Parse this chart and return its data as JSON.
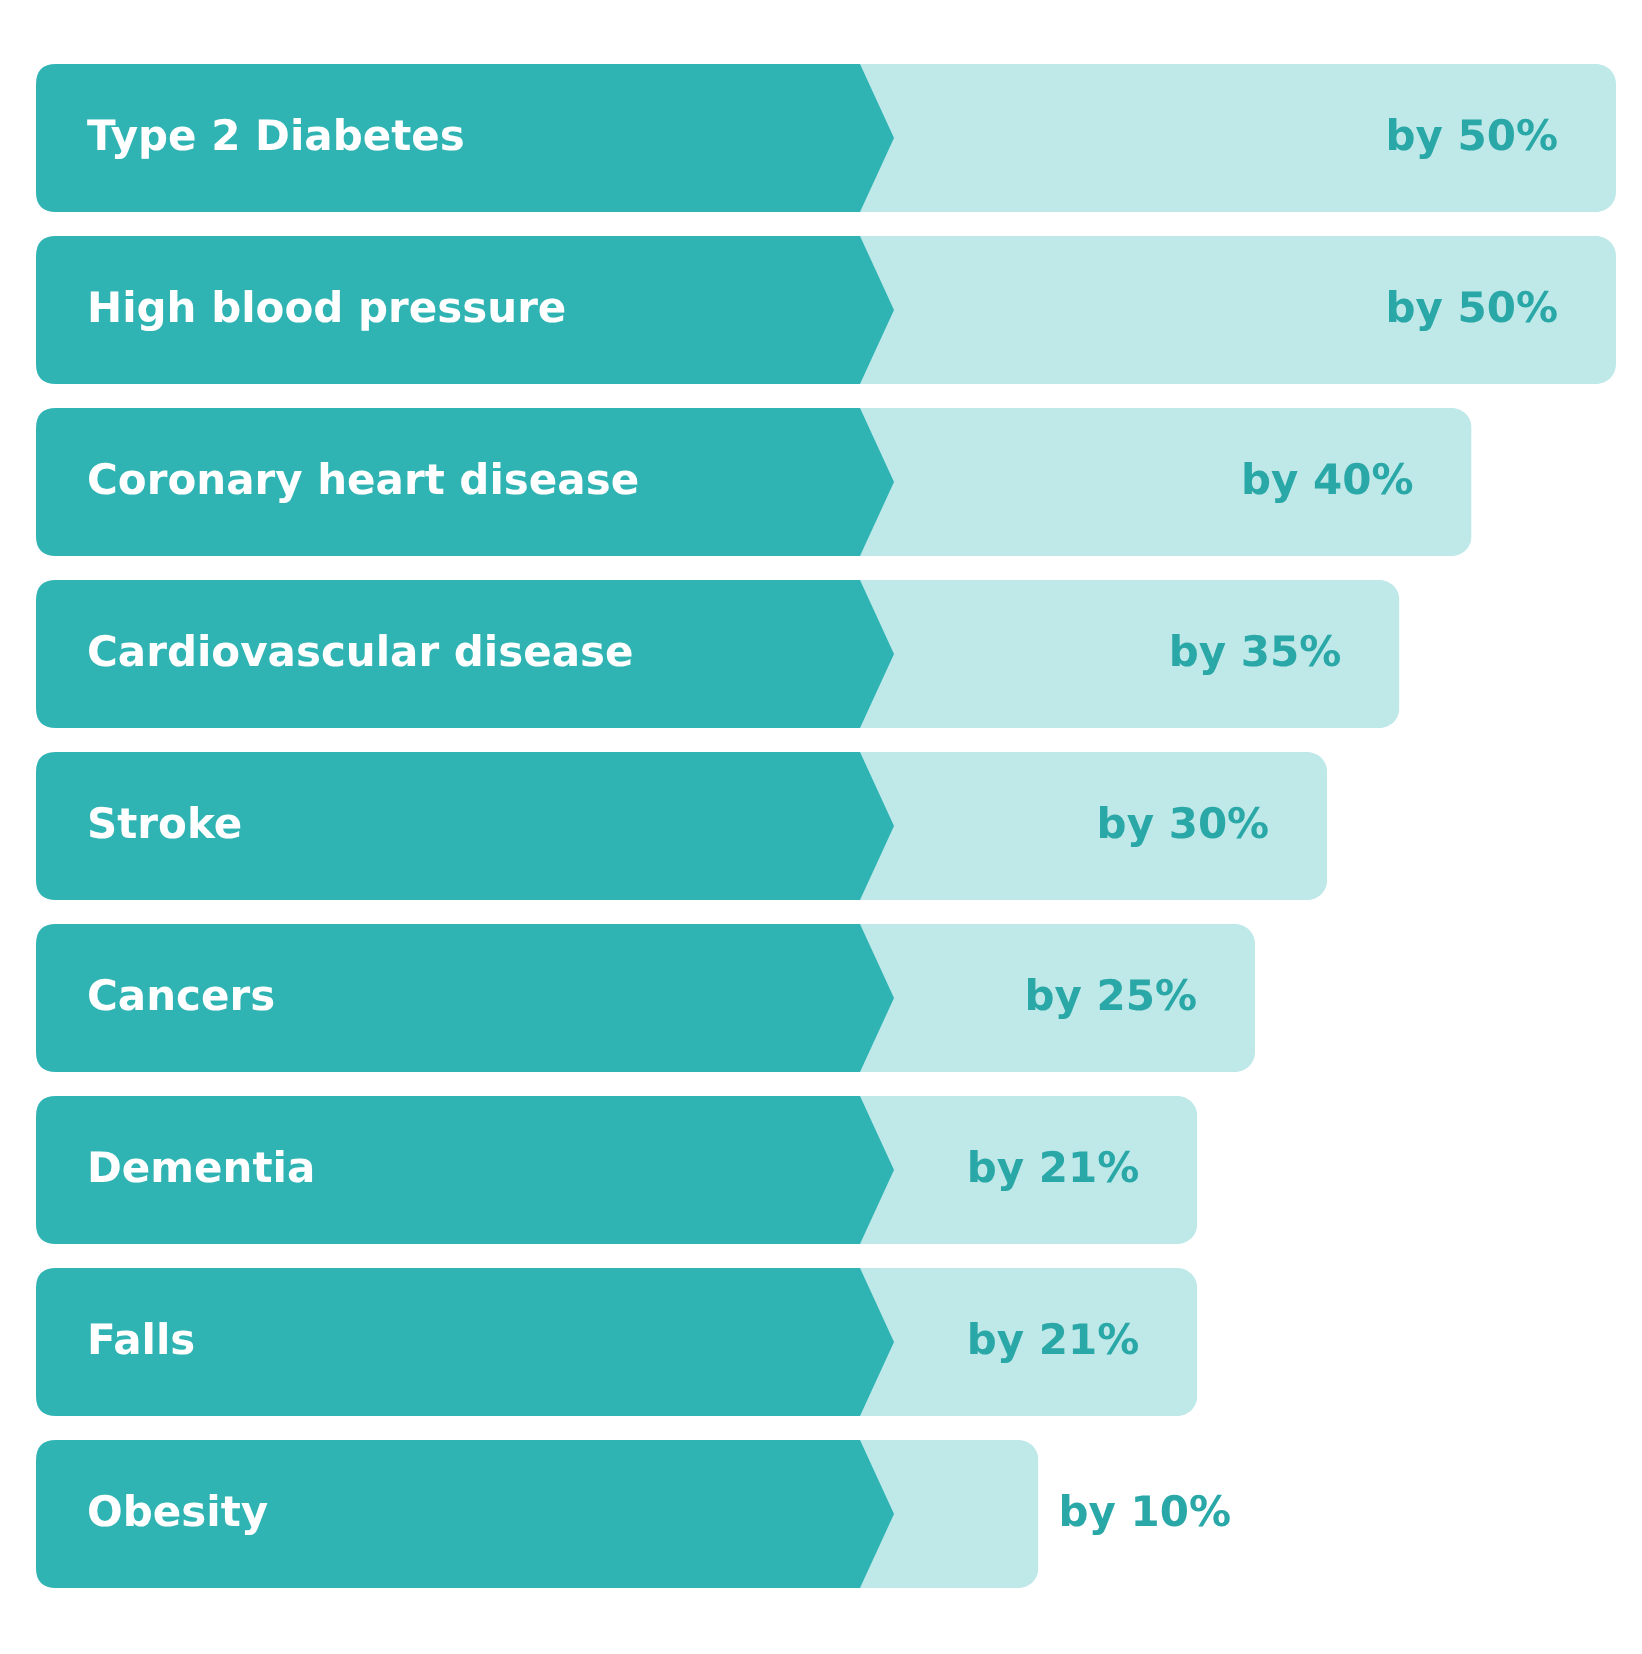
{
  "chart_data": {
    "type": "bar",
    "orientation": "horizontal",
    "categories": [
      "Type 2 Diabetes",
      "High blood pressure",
      "Coronary heart disease",
      "Cardiovascular disease",
      "Stroke",
      "Cancers",
      "Dementia",
      "Falls",
      "Obesity"
    ],
    "values": [
      50,
      50,
      40,
      35,
      30,
      25,
      21,
      21,
      10
    ],
    "value_labels": [
      "by 50%",
      "by 50%",
      "by 40%",
      "by 35%",
      "by 30%",
      "by 25%",
      "by 21%",
      "by 21%",
      "by 10%"
    ],
    "color": "#bfe8e8"
  }
}
